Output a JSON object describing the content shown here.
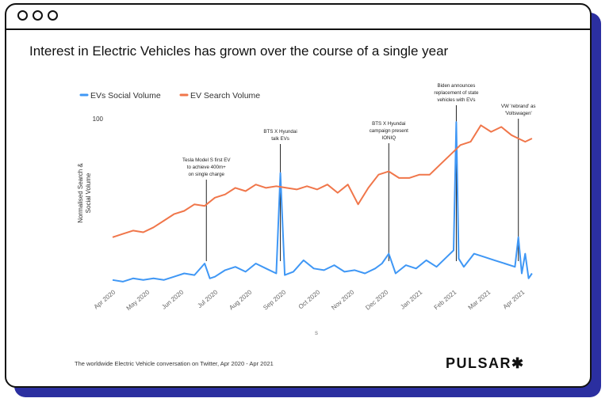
{
  "window": {
    "title_bar_buttons": [
      "circle",
      "circle",
      "circle"
    ]
  },
  "headline": "Interest in Electric Vehicles has grown over the course of a single year",
  "footnote": "The worldwide Electric Vehicle conversation on Twitter, Apr 2020 - Apr 2021",
  "brand": "PULSAR✱",
  "colors": {
    "social": "#3f97f5",
    "search": "#f0764a",
    "text": "#111111",
    "shadow": "#2b2fa0"
  },
  "chart_data": {
    "type": "line",
    "title": "",
    "xlabel": "s",
    "ylabel": "Normalised Search & Social Volume",
    "ylim": [
      0,
      100
    ],
    "y_ticks": [
      "100"
    ],
    "x_tick_labels": [
      "Apr 2020",
      "May 2020",
      "Jun 2020",
      "Jul 2020",
      "Aug 2020",
      "Sep 2020",
      "Oct 2020",
      "Nov 2020",
      "Dec 2020",
      "Jan 2021",
      "Feb 2021",
      "Mar 2021",
      "Apr 2021"
    ],
    "legend_position": "top-left",
    "series": [
      {
        "name": "EVs Social Volume",
        "color": "#3f97f5",
        "x": [
          0,
          0.3,
          0.6,
          0.9,
          1.2,
          1.5,
          1.8,
          2.1,
          2.4,
          2.7,
          2.85,
          3.0,
          3.3,
          3.6,
          3.9,
          4.2,
          4.5,
          4.8,
          4.92,
          5.05,
          5.3,
          5.6,
          5.9,
          6.2,
          6.5,
          6.8,
          7.1,
          7.4,
          7.7,
          7.9,
          8.1,
          8.3,
          8.6,
          8.9,
          9.2,
          9.5,
          9.8,
          10.0,
          10.08,
          10.15,
          10.3,
          10.6,
          10.9,
          11.2,
          11.5,
          11.8,
          11.9,
          12.0,
          12.1,
          12.2,
          12.3
        ],
        "values": [
          2,
          1,
          3,
          2,
          3,
          2,
          4,
          6,
          5,
          12,
          3,
          4,
          8,
          10,
          7,
          12,
          9,
          6,
          67,
          5,
          7,
          14,
          9,
          8,
          11,
          7,
          8,
          6,
          9,
          12,
          18,
          6,
          11,
          9,
          14,
          10,
          16,
          20,
          98,
          15,
          10,
          18,
          16,
          14,
          12,
          10,
          28,
          6,
          18,
          3,
          6
        ]
      },
      {
        "name": "EV Search Volume",
        "color": "#f0764a",
        "x": [
          0,
          0.3,
          0.6,
          0.9,
          1.2,
          1.5,
          1.8,
          2.1,
          2.4,
          2.7,
          3.0,
          3.3,
          3.6,
          3.9,
          4.2,
          4.5,
          4.8,
          5.1,
          5.4,
          5.7,
          6.0,
          6.3,
          6.6,
          6.9,
          7.2,
          7.5,
          7.8,
          8.1,
          8.4,
          8.7,
          9.0,
          9.3,
          9.6,
          9.9,
          10.2,
          10.5,
          10.8,
          11.1,
          11.4,
          11.7,
          11.9,
          12.1,
          12.3
        ],
        "values": [
          28,
          30,
          32,
          31,
          34,
          38,
          42,
          44,
          48,
          47,
          52,
          54,
          58,
          56,
          60,
          58,
          59,
          58,
          57,
          59,
          57,
          60,
          55,
          60,
          48,
          58,
          66,
          68,
          64,
          64,
          66,
          66,
          72,
          78,
          84,
          86,
          96,
          92,
          95,
          90,
          88,
          86,
          88
        ]
      }
    ],
    "annotations": [
      {
        "x": 2.75,
        "text_lines": [
          "Tesla Model S first EV",
          "to achieve 400m+",
          "on single charge"
        ]
      },
      {
        "x": 4.92,
        "text_lines": [
          "BTS X Hyundai",
          "talk EVs"
        ]
      },
      {
        "x": 8.1,
        "text_lines": [
          "BTS X Hyundai",
          "campaign present",
          "IONIQ"
        ]
      },
      {
        "x": 10.08,
        "text_lines": [
          "Biden announces",
          "replacement of state",
          "vehicles with EVs"
        ]
      },
      {
        "x": 11.9,
        "text_lines": [
          "VW 'rebrand' as",
          "'Voltswagen'"
        ]
      }
    ]
  }
}
